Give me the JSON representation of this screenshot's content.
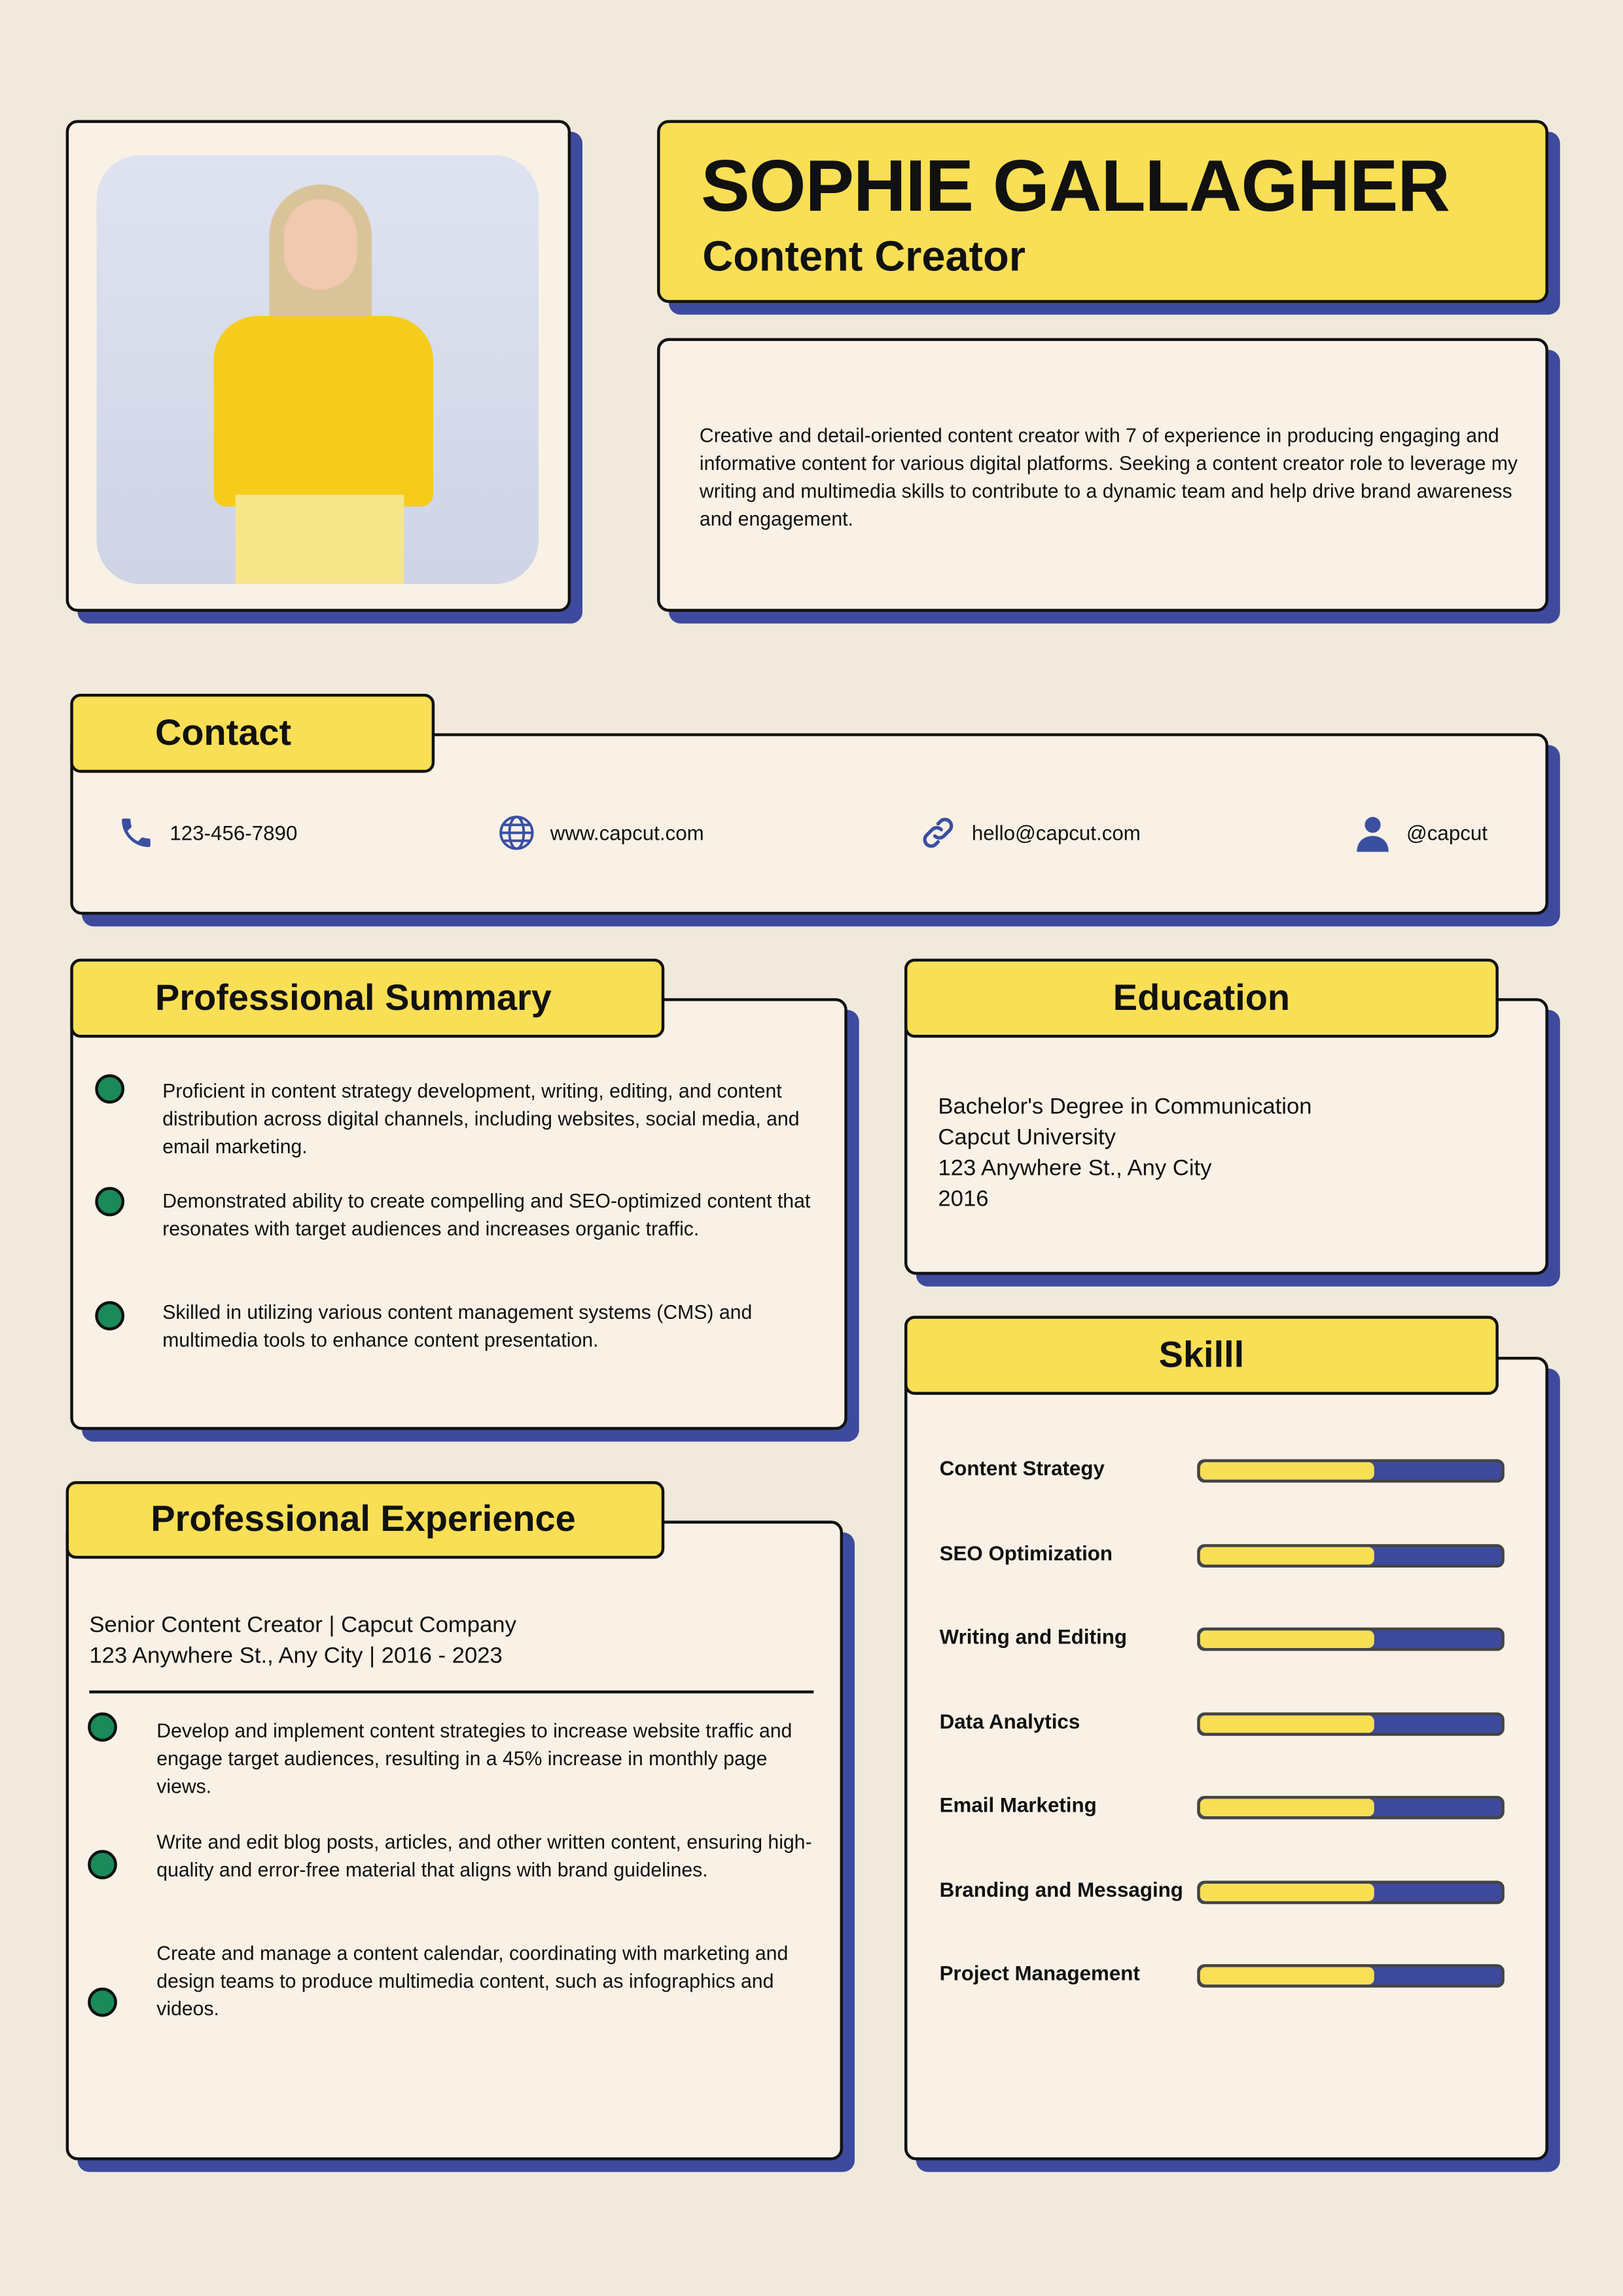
{
  "header": {
    "name": "SOPHIE GALLAGHER",
    "title": "Content Creator"
  },
  "profile": "Creative and detail-oriented content creator with 7 of experience in producing engaging and informative content for various digital platforms. Seeking a content creator role to leverage my writing and multimedia skills to contribute to a dynamic team and help drive brand awareness and engagement.",
  "contact": {
    "heading": "Contact",
    "items": [
      {
        "icon": "phone-icon",
        "text": "123-456-7890"
      },
      {
        "icon": "globe-icon",
        "text": "www.capcut.com"
      },
      {
        "icon": "link-icon",
        "text": "hello@capcut.com"
      },
      {
        "icon": "user-icon",
        "text": "@capcut"
      }
    ]
  },
  "summary": {
    "heading": "Professional Summary",
    "items": [
      "Proficient in content strategy development, writing, editing, and content distribution across digital channels, including websites, social media, and email marketing.",
      "Demonstrated ability to create compelling and SEO-optimized content that resonates with target audiences and increases organic traffic.",
      "Skilled in utilizing various content management systems (CMS) and multimedia tools to enhance content presentation."
    ]
  },
  "education": {
    "heading": "Education",
    "lines": [
      "Bachelor's Degree in Communication",
      "Capcut University",
      "123 Anywhere St., Any City",
      "2016"
    ]
  },
  "experience": {
    "heading": "Professional Experience",
    "role": "Senior Content Creator | Capcut Company",
    "place": "123 Anywhere St., Any City | 2016 - 2023",
    "items": [
      "Develop and implement content strategies to increase website traffic and engage target audiences, resulting in a 45% increase in  monthly page views.",
      "Write and edit blog posts, articles, and other written content, ensuring high-quality and error-free material that aligns with brand guidelines.",
      "Create and manage a content calendar, coordinating with marketing and design teams to produce multimedia content, such as infographics and videos."
    ]
  },
  "skills": {
    "heading": "Skilll",
    "items": [
      {
        "label": "Content Strategy",
        "level": 58
      },
      {
        "label": "SEO Optimization",
        "level": 58
      },
      {
        "label": "Writing and Editing",
        "level": 58
      },
      {
        "label": "Data Analytics",
        "level": 58
      },
      {
        "label": "Email Marketing",
        "level": 58
      },
      {
        "label": "Branding and Messaging",
        "level": 58
      },
      {
        "label": "Project Management",
        "level": 58
      }
    ]
  },
  "colors": {
    "background": "#f0e9dc",
    "card": "#f9f1e6",
    "accent_yellow": "#f9df55",
    "shadow_blue": "#3d4a9e",
    "bullet_green": "#1a8a5a",
    "icon_blue": "#3a4fa0"
  }
}
